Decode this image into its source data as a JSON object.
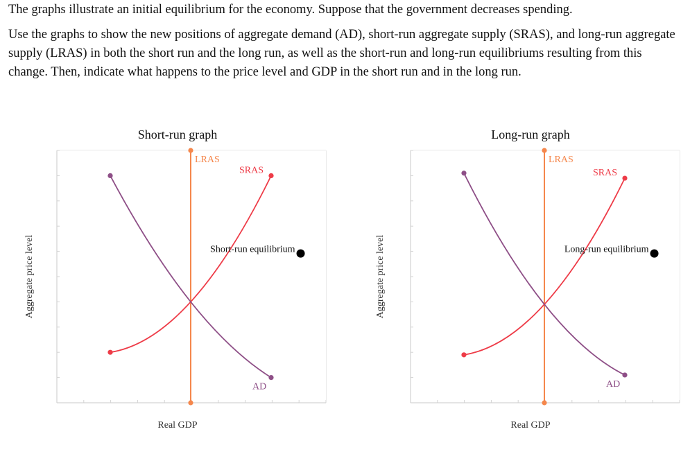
{
  "prompt": {
    "line1": "The graphs illustrate an initial equilibrium for the economy. Suppose that the government decreases spending.",
    "line2": "Use the graphs to show the new positions of aggregate demand (AD), short-run aggregate supply (SRAS), and long-run aggregate supply (LRAS) in both the short run and the long run, as well as the short-run and long-run equilibriums resulting from this change. Then, indicate what happens to the price level and GDP in the short run and in the long run."
  },
  "colors": {
    "lras": "#F5874C",
    "sras": "#EE3C48",
    "ad": "#8E4F87",
    "grid": "#D3D3D3",
    "text": "#222222",
    "point": "#000000"
  },
  "chart_data": [
    {
      "type": "line",
      "title": "Short-run graph",
      "xlabel": "Real GDP",
      "ylabel": "Aggregate price level",
      "xlim": [
        0,
        10
      ],
      "ylim": [
        0,
        10
      ],
      "grid": true,
      "series": [
        {
          "name": "LRAS",
          "color_key": "lras",
          "curve": "line",
          "points": [
            [
              5,
              10
            ],
            [
              5,
              0
            ]
          ]
        },
        {
          "name": "SRAS",
          "color_key": "sras",
          "curve": "quad",
          "points": [
            [
              2,
              2
            ],
            [
              5,
              4
            ],
            [
              8,
              9
            ]
          ]
        },
        {
          "name": "AD",
          "color_key": "ad",
          "curve": "quad",
          "points": [
            [
              2,
              9
            ],
            [
              5,
              4
            ],
            [
              8,
              1
            ]
          ]
        }
      ],
      "annotations": [
        {
          "text": "Short-run equilibrium",
          "marker": "point",
          "x": 9.1,
          "y": 6
        }
      ]
    },
    {
      "type": "line",
      "title": "Long-run graph",
      "xlabel": "Real GDP",
      "ylabel": "Aggregate price level",
      "xlim": [
        0,
        10
      ],
      "ylim": [
        0,
        10
      ],
      "grid": true,
      "series": [
        {
          "name": "LRAS",
          "color_key": "lras",
          "curve": "line",
          "points": [
            [
              5,
              10
            ],
            [
              5,
              0
            ]
          ]
        },
        {
          "name": "SRAS",
          "color_key": "sras",
          "curve": "quad",
          "points": [
            [
              2,
              1.9
            ],
            [
              5,
              3.9
            ],
            [
              8,
              8.9
            ]
          ]
        },
        {
          "name": "AD",
          "color_key": "ad",
          "curve": "quad",
          "points": [
            [
              2,
              9.1
            ],
            [
              5,
              3.9
            ],
            [
              8,
              1.1
            ]
          ]
        }
      ],
      "annotations": [
        {
          "text": "Long-run equilibrium",
          "marker": "point",
          "x": 9.1,
          "y": 6
        }
      ]
    }
  ]
}
